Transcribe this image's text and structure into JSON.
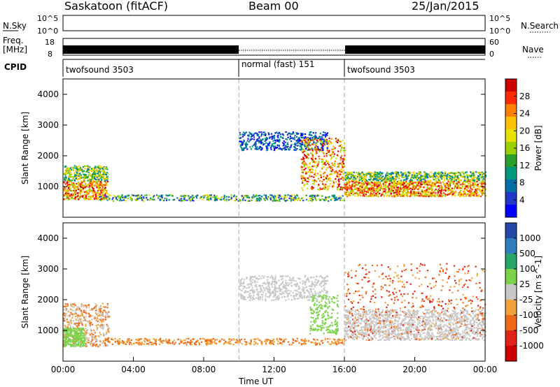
{
  "header": {
    "station": "Saskatoon (fitACF)",
    "beam": "Beam 00",
    "date": "25/Jan/2015"
  },
  "noise_panel": {
    "left_label": "N.Sky",
    "right_label": "N.Search",
    "left_ticks": [
      "10^5",
      "10^0"
    ],
    "right_ticks": [
      "10^5",
      "10^0"
    ]
  },
  "freq_panel": {
    "left_label_1": "Freq.",
    "left_label_2": "[MHz]",
    "right_label": "Nave",
    "left_ticks": [
      "18",
      "8"
    ],
    "right_ticks": [
      "60",
      "0"
    ]
  },
  "cpid": {
    "label": "CPID",
    "segments": [
      {
        "name": "twofsound 3503",
        "start_hour": 0,
        "end_hour": 10
      },
      {
        "name": "normal (fast) 151",
        "start_hour": 10,
        "end_hour": 16
      },
      {
        "name": "twofsound 3503",
        "start_hour": 16,
        "end_hour": 24
      }
    ]
  },
  "chart_data": [
    {
      "type": "heatmap",
      "title": "Power",
      "ylabel": "Slant Range [km]",
      "colorbar_label": "Power [dB]",
      "colorbar_ticks": [
        "28",
        "24",
        "20",
        "16",
        "12",
        "8",
        "4"
      ],
      "colorbar_colors": [
        "#cc0000",
        "#ff2a00",
        "#ff7f00",
        "#ffc000",
        "#e8e000",
        "#9bd100",
        "#2ca02c",
        "#00997f",
        "#006fa8",
        "#2038c8",
        "#0000ff"
      ],
      "ylim": [
        0,
        4500
      ],
      "yticks": [
        1000,
        2000,
        3000,
        4000
      ],
      "xlim": [
        0,
        24
      ],
      "features": [
        {
          "name": "early dense echoes",
          "x": [
            0,
            2.5
          ],
          "y": [
            600,
            1700
          ],
          "level_db": 26
        },
        {
          "name": "near-range band",
          "x": [
            2,
            16
          ],
          "y": [
            550,
            750
          ],
          "level_db": 14
        },
        {
          "name": "far arc",
          "x": [
            10,
            15
          ],
          "y": [
            2200,
            2800
          ],
          "level_db": 6
        },
        {
          "name": "descending arc",
          "x": [
            13.5,
            16
          ],
          "y": [
            900,
            2600
          ],
          "level_db": 18
        },
        {
          "name": "post-16 band",
          "x": [
            16,
            24
          ],
          "y": [
            700,
            1500
          ],
          "level_db": 24
        }
      ]
    },
    {
      "type": "heatmap",
      "title": "Velocity",
      "ylabel": "Slant Range [km]",
      "xlabel": "Time UT",
      "colorbar_label": "Velocity [m s^-1]",
      "colorbar_ticks": [
        "1000",
        "500",
        "100",
        "25",
        "-25",
        "-100",
        "-500",
        "-1000"
      ],
      "colorbar_colors": [
        "#2448a8",
        "#2f7fc0",
        "#2aa56a",
        "#7bd34a",
        "#c8c8c8",
        "#f3a23a",
        "#ef6a18",
        "#e02418",
        "#cc0000"
      ],
      "ylim": [
        0,
        4500
      ],
      "yticks": [
        1000,
        2000,
        3000,
        4000
      ],
      "xlim": [
        0,
        24
      ],
      "xticks": [
        "00:00",
        "04:00",
        "08:00",
        "12:00",
        "16:00",
        "20:00",
        "00:00"
      ]
    }
  ]
}
